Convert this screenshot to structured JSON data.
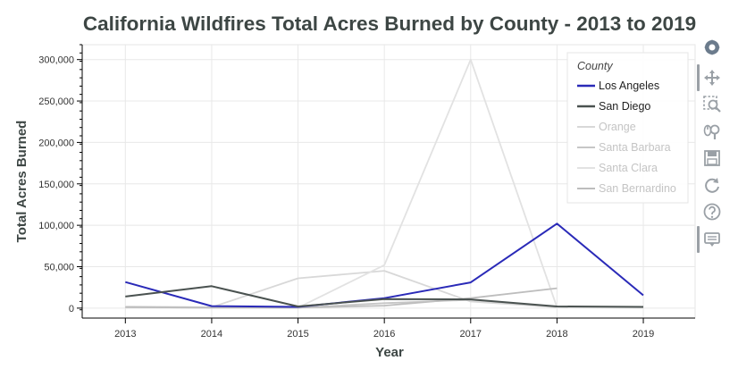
{
  "chart_data": {
    "type": "line",
    "title": "California Wildfires Total Acres Burned by County - 2013 to 2019",
    "xlabel": "Year",
    "ylabel": "Total Acres Burned",
    "x": [
      2013,
      2014,
      2015,
      2016,
      2017,
      2018,
      2019
    ],
    "x_tick_labels": [
      "2013",
      "2014",
      "2015",
      "2016",
      "2017",
      "2018",
      "2019"
    ],
    "ylim": [
      -12000,
      318000
    ],
    "y_ticks": [
      0,
      50000,
      100000,
      150000,
      200000,
      250000,
      300000
    ],
    "y_tick_labels": [
      "0",
      "50,000",
      "100,000",
      "150,000",
      "200,000",
      "250,000",
      "300,000"
    ],
    "grid": true,
    "legend": {
      "title": "County",
      "placement": "top-right"
    },
    "series": [
      {
        "name": "Los Angeles",
        "color": "#2a2ab8",
        "muted": false,
        "values": [
          31500,
          2500,
          1500,
          12000,
          31000,
          102000,
          15500
        ]
      },
      {
        "name": "San Diego",
        "color": "#4a5250",
        "muted": false,
        "values": [
          14000,
          26500,
          2000,
          11000,
          10500,
          2000,
          1500
        ]
      },
      {
        "name": "Orange",
        "color": "#d8d8d8",
        "muted": true,
        "values": [
          2000,
          1000,
          36000,
          45000,
          8000,
          1000,
          500
        ]
      },
      {
        "name": "Santa Barbara",
        "color": "#c6c6c6",
        "muted": true,
        "values": [
          1000,
          500,
          500,
          6000,
          10000,
          1500,
          1000
        ]
      },
      {
        "name": "Santa Clara",
        "color": "#e2e2e2",
        "muted": true,
        "values": [
          500,
          500,
          500,
          52000,
          300000,
          1000,
          500
        ]
      },
      {
        "name": "San Bernardino",
        "color": "#bdbdbd",
        "muted": true,
        "values": [
          1000,
          500,
          500,
          3000,
          12000,
          24000,
          null
        ]
      }
    ]
  },
  "toolbar": {
    "tools": [
      {
        "name": "bokeh-logo-icon",
        "icon": "logo",
        "active": false
      },
      {
        "name": "pan-tool-icon",
        "icon": "pan",
        "active": true
      },
      {
        "name": "box-zoom-tool-icon",
        "icon": "box-zoom",
        "active": false
      },
      {
        "name": "wheel-zoom-tool-icon",
        "icon": "wheel-zoom",
        "active": false
      },
      {
        "name": "save-tool-icon",
        "icon": "save",
        "active": false
      },
      {
        "name": "reset-tool-icon",
        "icon": "reset",
        "active": false
      },
      {
        "name": "help-tool-icon",
        "icon": "help",
        "active": false
      },
      {
        "name": "hover-tool-icon",
        "icon": "hover",
        "active": true
      }
    ]
  }
}
